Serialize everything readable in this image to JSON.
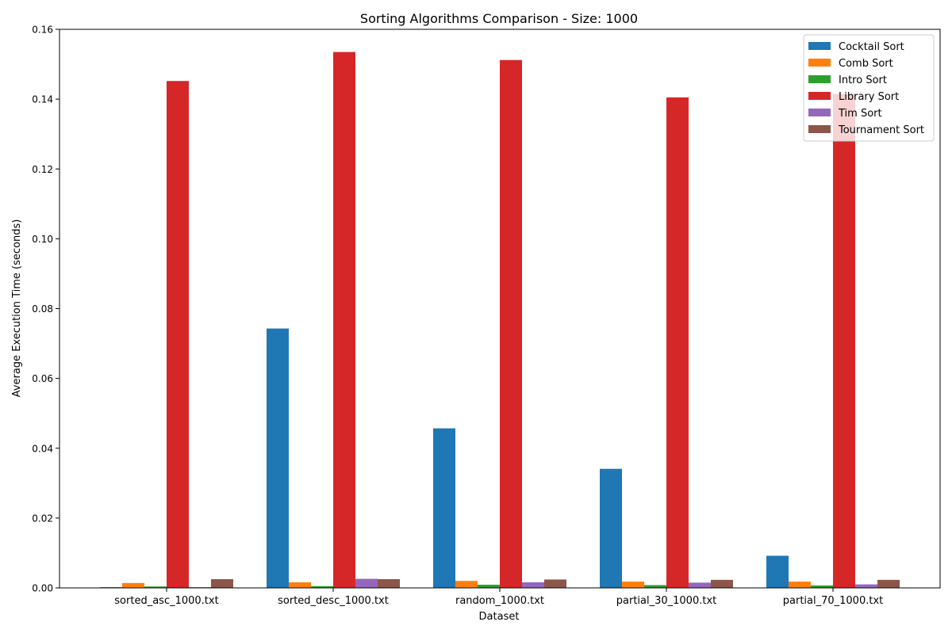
{
  "chart_data": {
    "type": "bar",
    "title": "Sorting Algorithms Comparison - Size: 1000",
    "xlabel": "Dataset",
    "ylabel": "Average Execution Time (seconds)",
    "ylim": [
      0,
      0.16
    ],
    "yticks": [
      {
        "value": 0,
        "label": "0.00"
      },
      {
        "value": 0.02,
        "label": "0.02"
      },
      {
        "value": 0.04,
        "label": "0.04"
      },
      {
        "value": 0.06,
        "label": "0.06"
      },
      {
        "value": 0.08,
        "label": "0.08"
      },
      {
        "value": 0.1,
        "label": "0.10"
      },
      {
        "value": 0.12,
        "label": "0.12"
      },
      {
        "value": 0.14,
        "label": "0.14"
      },
      {
        "value": 0.16,
        "label": "0.16"
      }
    ],
    "grid": false,
    "legend_position": "top-right",
    "categories": [
      "sorted_asc_1000.txt",
      "sorted_desc_1000.txt",
      "random_1000.txt",
      "partial_30_1000.txt",
      "partial_70_1000.txt"
    ],
    "series": [
      {
        "name": "Cocktail Sort",
        "color": "#1f77b4",
        "values": [
          0.0002,
          0.0743,
          0.0457,
          0.0341,
          0.0092
        ]
      },
      {
        "name": "Comb Sort",
        "color": "#ff7f0e",
        "values": [
          0.0014,
          0.0016,
          0.002,
          0.0018,
          0.0018
        ]
      },
      {
        "name": "Intro Sort",
        "color": "#2ca02c",
        "values": [
          0.0004,
          0.0005,
          0.0009,
          0.0008,
          0.0007
        ]
      },
      {
        "name": "Library Sort",
        "color": "#d62728",
        "values": [
          0.1452,
          0.1535,
          0.1512,
          0.1405,
          0.1415
        ]
      },
      {
        "name": "Tim Sort",
        "color": "#9467bd",
        "values": [
          0.0002,
          0.0026,
          0.0016,
          0.0015,
          0.001
        ]
      },
      {
        "name": "Tournament Sort",
        "color": "#8c564b",
        "values": [
          0.0025,
          0.0025,
          0.0024,
          0.0023,
          0.0023
        ]
      }
    ]
  }
}
